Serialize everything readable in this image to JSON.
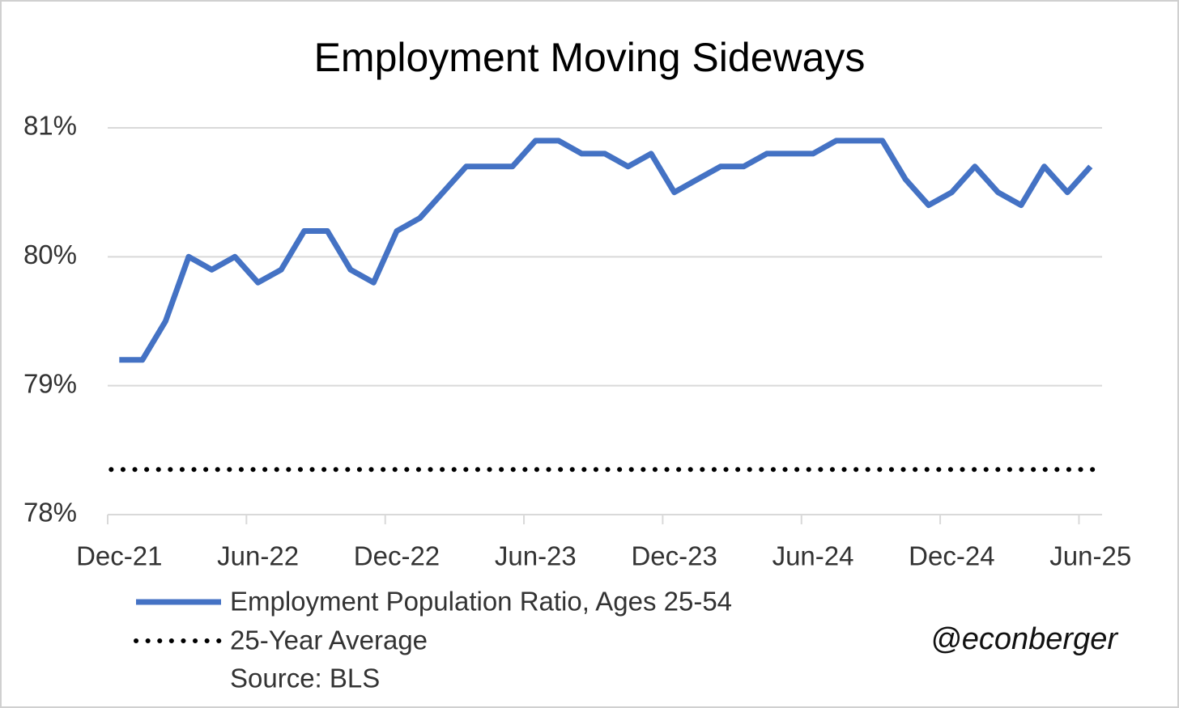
{
  "chart_data": {
    "type": "line",
    "title": "Employment Moving Sideways",
    "categories": [
      "Dec-21",
      null,
      null,
      null,
      null,
      null,
      "Jun-22",
      null,
      null,
      null,
      null,
      null,
      "Dec-22",
      null,
      null,
      null,
      null,
      null,
      "Jun-23",
      null,
      null,
      null,
      null,
      null,
      "Dec-23",
      null,
      null,
      null,
      null,
      null,
      "Jun-24",
      null,
      null,
      null,
      null,
      null,
      "Dec-24",
      null,
      null,
      null,
      null,
      null,
      "Jun-25"
    ],
    "series": [
      {
        "name": "Employment Population Ratio, Ages 25-54",
        "color": "#4472c4",
        "values": [
          79.2,
          79.2,
          79.5,
          80.0,
          79.9,
          80.0,
          79.8,
          79.9,
          80.2,
          80.2,
          79.9,
          79.8,
          80.2,
          80.3,
          80.5,
          80.7,
          80.7,
          80.7,
          80.9,
          80.9,
          80.8,
          80.8,
          80.7,
          80.8,
          80.5,
          80.6,
          80.7,
          80.7,
          80.8,
          80.8,
          80.8,
          80.9,
          80.9,
          80.9,
          80.6,
          80.4,
          80.5,
          80.7,
          80.5,
          80.4,
          80.7,
          80.5,
          80.7
        ]
      }
    ],
    "reference_line": {
      "name": "25-Year Average",
      "value": 78.35,
      "color": "#000000"
    },
    "ylim": [
      78,
      81
    ],
    "yticks": [
      {
        "value": 78,
        "label": "78%"
      },
      {
        "value": 79,
        "label": "79%"
      },
      {
        "value": 80,
        "label": "80%"
      },
      {
        "value": 81,
        "label": "81%"
      }
    ],
    "grid": true,
    "source": "Source: BLS",
    "credit": "@econberger"
  }
}
